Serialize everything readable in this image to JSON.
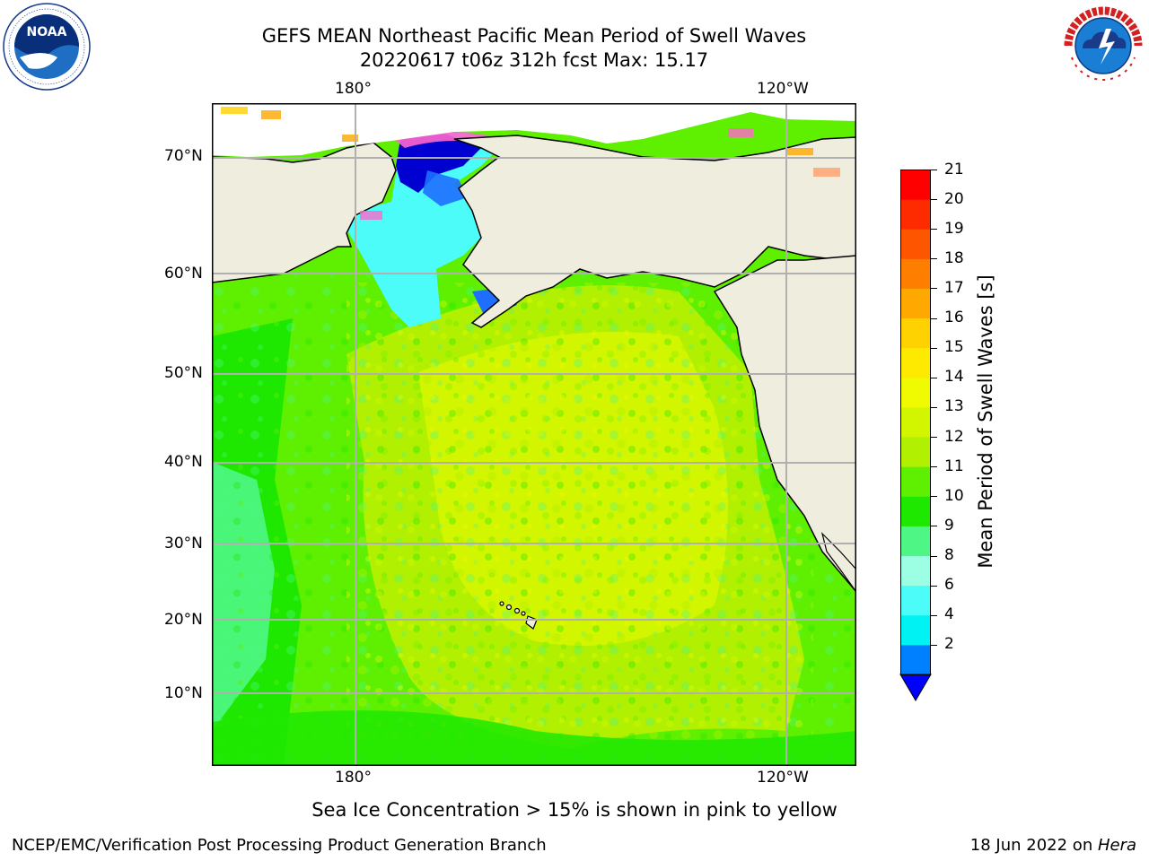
{
  "title_line1": "GEFS MEAN Northeast Pacific Mean Period of Swell Waves",
  "title_line2": "20220617 t06z 312h fcst   Max: 15.17",
  "logos": {
    "left": "NOAA",
    "right": "NATIONAL WEATHER SERVICE",
    "left_ring_text": "NATIONAL OCEANIC AND ATMOSPHERIC ADMINISTRATION · U.S. DEPARTMENT OF COMMERCE"
  },
  "map": {
    "lon_labels_top": [
      "180°",
      "120°W"
    ],
    "lon_labels_bottom": [
      "180°",
      "120°W"
    ],
    "lat_labels": [
      "70°N",
      "60°N",
      "50°N",
      "40°N",
      "30°N",
      "20°N",
      "10°N"
    ],
    "land_color": "#efedde",
    "grid_color": "#b0b0b0"
  },
  "colorbar": {
    "label": "Mean Period of Swell Waves [s]",
    "ticks": [
      "21",
      "20",
      "19",
      "18",
      "17",
      "16",
      "15",
      "14",
      "13",
      "12",
      "11",
      "10",
      "9",
      "8",
      "6",
      "4",
      "2"
    ],
    "colors_top_to_bottom": [
      "#fe0000",
      "#fe2a00",
      "#fe5500",
      "#fe7f00",
      "#fea800",
      "#fed100",
      "#feea00",
      "#f0fa00",
      "#d2f500",
      "#b0f000",
      "#5ef000",
      "#1ee800",
      "#4ef785",
      "#9cffe4",
      "#4cfcf8",
      "#00f2f2",
      "#0080ff"
    ],
    "extend_color": "#0000ff"
  },
  "caption": "Sea Ice Concentration > 15% is shown in pink to yellow",
  "footer_left": "NCEP/EMC/Verification Post Processing Product Generation Branch",
  "footer_right_prefix": "18 Jun 2022 on ",
  "footer_right_host": "Hera"
}
